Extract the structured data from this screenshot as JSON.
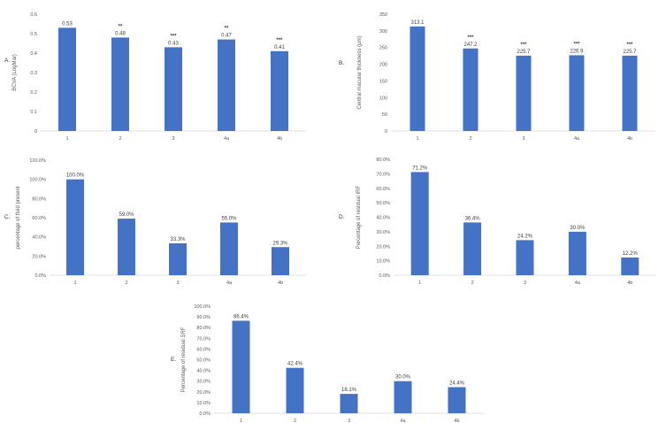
{
  "colors": {
    "bar": "#4472c4",
    "axis": "#d9d9d9",
    "text": "#595959"
  },
  "chart_data": [
    {
      "type": "bar",
      "panel": "A.",
      "ylabel": "BCVA (LogMar)",
      "categories": [
        "1",
        "2",
        "3",
        "4a",
        "4b"
      ],
      "values": [
        0.53,
        0.48,
        0.43,
        0.47,
        0.41
      ],
      "value_labels": [
        "0.53",
        "0.48",
        "0.43",
        "0.47",
        "0.41"
      ],
      "significance": [
        "",
        "**",
        "***",
        "**",
        "***"
      ],
      "ylim": [
        0,
        0.6
      ],
      "yticks": [
        0,
        0.1,
        0.2,
        0.3,
        0.4,
        0.5,
        0.6
      ],
      "ytick_labels": [
        "0",
        "0.1",
        "0.2",
        "0.3",
        "0.4",
        "0.5",
        "0.6"
      ]
    },
    {
      "type": "bar",
      "panel": "B.",
      "ylabel": "Central macular thickness (µm)",
      "categories": [
        "1",
        "2",
        "3",
        "4a",
        "4b"
      ],
      "values": [
        313.1,
        247.2,
        225.7,
        226.9,
        225.7
      ],
      "value_labels": [
        "313.1",
        "247.2",
        "225.7",
        "226.9",
        "225.7"
      ],
      "significance": [
        "",
        "***",
        "***",
        "***",
        "***"
      ],
      "ylim": [
        0,
        350
      ],
      "yticks": [
        0,
        50,
        100,
        150,
        200,
        250,
        300,
        350
      ],
      "ytick_labels": [
        "0",
        "50",
        "100",
        "150",
        "200",
        "250",
        "300",
        "350"
      ]
    },
    {
      "type": "bar",
      "panel": "C.",
      "ylabel": "percentage of fluid present",
      "categories": [
        "1",
        "2",
        "3",
        "4a",
        "4b"
      ],
      "values": [
        100.0,
        59.0,
        33.3,
        55.0,
        29.3
      ],
      "value_labels": [
        "100.0%",
        "59.0%",
        "33.3%",
        "55.0%",
        "29.3%"
      ],
      "significance": [
        "",
        "",
        "",
        "",
        ""
      ],
      "ylim": [
        0,
        120
      ],
      "yticks": [
        0,
        20,
        40,
        60,
        80,
        100,
        120
      ],
      "ytick_labels": [
        "0.0%",
        "20.0%",
        "40.0%",
        "60.0%",
        "80.0%",
        "100.0%",
        "120.0%"
      ]
    },
    {
      "type": "bar",
      "panel": "D.",
      "ylabel": "Percentage of residual IRF",
      "categories": [
        "1",
        "2",
        "3",
        "4a",
        "4b"
      ],
      "values": [
        71.2,
        36.4,
        24.2,
        30.0,
        12.2
      ],
      "value_labels": [
        "71.2%",
        "36.4%",
        "24.2%",
        "30.0%",
        "12.2%"
      ],
      "significance": [
        "",
        "",
        "",
        "",
        ""
      ],
      "ylim": [
        0,
        80
      ],
      "yticks": [
        0,
        10,
        20,
        30,
        40,
        50,
        60,
        70,
        80
      ],
      "ytick_labels": [
        "0.0%",
        "10.0%",
        "20.0%",
        "30.0%",
        "40.0%",
        "50.0%",
        "60.0%",
        "70.0%",
        "80.0%"
      ]
    },
    {
      "type": "bar",
      "panel": "E.",
      "ylabel": "Percentage of residual SRF",
      "categories": [
        "1",
        "2",
        "3",
        "4a",
        "4b"
      ],
      "values": [
        86.4,
        42.4,
        18.1,
        30.0,
        24.4
      ],
      "value_labels": [
        "86.4%",
        "42.4%",
        "18.1%",
        "30.0%",
        "24.4%"
      ],
      "significance": [
        "",
        "",
        "",
        "",
        ""
      ],
      "ylim": [
        0,
        100
      ],
      "yticks": [
        0,
        10,
        20,
        30,
        40,
        50,
        60,
        70,
        80,
        90,
        100
      ],
      "ytick_labels": [
        "0.0%",
        "10.0%",
        "20.0%",
        "30.0%",
        "40.0%",
        "50.0%",
        "60.0%",
        "70.0%",
        "80.0%",
        "90.0%",
        "100.0%"
      ]
    }
  ]
}
